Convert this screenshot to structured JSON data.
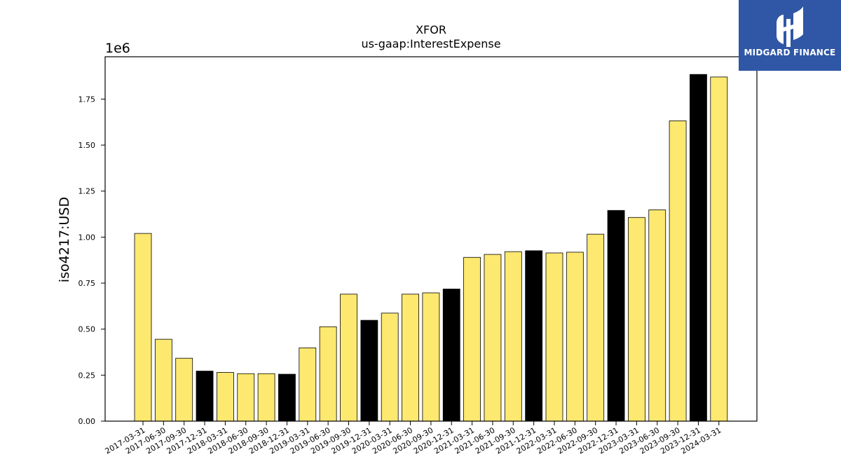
{
  "chart_data": {
    "type": "bar",
    "title": "XFOR",
    "subtitle": "us-gaap:InterestExpense",
    "ylabel": "iso4217:USD",
    "xlabel": "",
    "y_multiplier": "1e6",
    "ylim": [
      0,
      1.98
    ],
    "yticks": [
      0.0,
      0.25,
      0.5,
      0.75,
      1.0,
      1.25,
      1.5,
      1.75
    ],
    "ytick_labels": [
      "0.00",
      "0.25",
      "0.50",
      "0.75",
      "1.00",
      "1.25",
      "1.50",
      "1.75"
    ],
    "grid": false,
    "colors": {
      "highlight_bar": "#000000",
      "normal_bar": "#fde870",
      "bar_edge": "#000000"
    },
    "categories": [
      "2017-03-31",
      "2017-06-30",
      "2017-09-30",
      "2017-12-31",
      "2018-03-31",
      "2018-06-30",
      "2018-09-30",
      "2018-12-31",
      "2019-03-31",
      "2019-06-30",
      "2019-09-30",
      "2019-12-31",
      "2020-03-31",
      "2020-06-30",
      "2020-09-30",
      "2020-12-31",
      "2021-03-31",
      "2021-06-30",
      "2021-09-30",
      "2021-12-31",
      "2022-03-31",
      "2022-06-30",
      "2022-09-30",
      "2022-12-31",
      "2023-03-31",
      "2023-06-30",
      "2023-09-30",
      "2023-12-31",
      "2024-03-31"
    ],
    "values": [
      1.02,
      0.445,
      0.342,
      0.272,
      0.265,
      0.258,
      0.258,
      0.255,
      0.398,
      0.513,
      0.69,
      0.548,
      0.587,
      0.69,
      0.697,
      0.718,
      0.89,
      0.906,
      0.921,
      0.926,
      0.914,
      0.918,
      1.016,
      1.145,
      1.107,
      1.148,
      1.632,
      1.884,
      1.87
    ],
    "highlighted": [
      false,
      false,
      false,
      true,
      false,
      false,
      false,
      true,
      false,
      false,
      false,
      true,
      false,
      false,
      false,
      true,
      false,
      false,
      false,
      true,
      false,
      false,
      false,
      true,
      false,
      false,
      false,
      true,
      false
    ]
  },
  "logo": {
    "text": "MIDGARD FINANCE",
    "icon": "midgard-logo-icon",
    "background": "#2f57a6"
  }
}
